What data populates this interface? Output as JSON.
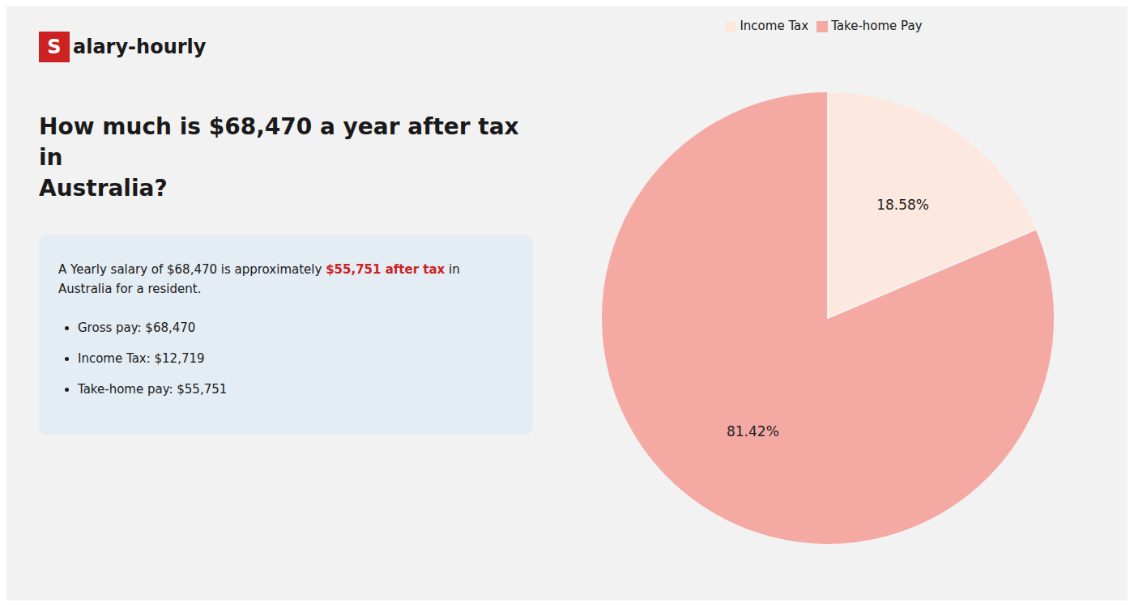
{
  "chart_data": {
    "type": "pie",
    "title": "How much is $68,470 a year after tax in\nAustralia?",
    "categories": [
      "Income Tax",
      "Take-home Pay"
    ],
    "values": [
      18.58,
      81.42
    ],
    "value_labels": [
      "18.58%",
      "81.42%"
    ],
    "colors": [
      "#fde8df",
      "#f5a9a3"
    ],
    "data_labels": true,
    "legend": "top",
    "annotations": {
      "logo": [
        {
          "text": "S",
          "color": "#cc2222"
        },
        {
          "text": "alary-hourly"
        }
      ],
      "summary": [
        [
          {
            "text": "A Yearly salary of $68,470 is approximately "
          },
          {
            "text": "$55,751 after tax",
            "color": "#cc2222"
          },
          {
            "text": " in"
          }
        ],
        [
          {
            "text": "Australia for a resident."
          }
        ]
      ],
      "bullets": [
        "Gross pay: $68,470",
        "Income Tax: $12,719",
        "Take-home pay: $55,751"
      ]
    }
  }
}
